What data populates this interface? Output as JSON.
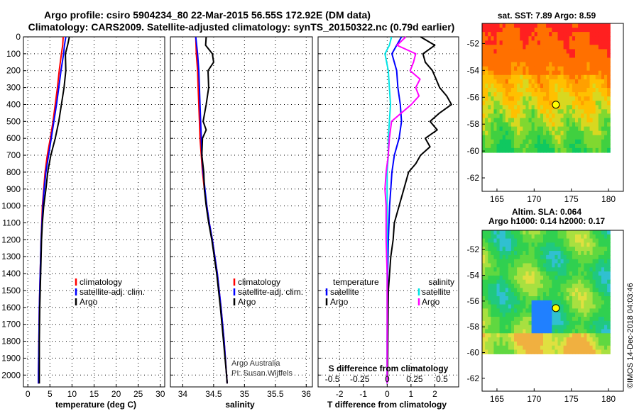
{
  "header": {
    "title_line1": "Argo profile: csiro 5904234_80 22-Mar-2015 56.55S 172.92E (DM data)",
    "title_line2": "Climatology: CARS2009. Satellite-adjusted climatology: synTS_20150322.nc (0.79d earlier)"
  },
  "colors": {
    "climatology": "#ff0000",
    "satellite": "#0000ff",
    "argo": "#000000",
    "sal_satellite": "#00e5e5",
    "sal_argo": "#ff00ff"
  },
  "chart_data": [
    {
      "type": "line",
      "id": "temperature",
      "xlabel": "temperature (deg C)",
      "ylabel": "",
      "xlim": [
        -1,
        31
      ],
      "ylim": [
        2070,
        0
      ],
      "xticks": [
        "0",
        "5",
        "10",
        "15",
        "20",
        "25",
        "30"
      ],
      "yticks": [
        "0",
        "100",
        "200",
        "300",
        "400",
        "500",
        "600",
        "700",
        "800",
        "900",
        "1000",
        "1100",
        "1200",
        "1300",
        "1400",
        "1500",
        "1600",
        "1700",
        "1800",
        "1900",
        "2000"
      ],
      "grid": true,
      "legend": [
        "climatology",
        "satellite-adj. clim.",
        "Argo"
      ],
      "series": [
        {
          "name": "climatology",
          "depth": [
            0,
            50,
            100,
            200,
            300,
            400,
            500,
            600,
            700,
            800,
            900,
            1000,
            1200,
            1400,
            1600,
            1800,
            2000,
            2050
          ],
          "values": [
            8.0,
            7.9,
            7.6,
            7.1,
            6.7,
            6.2,
            5.7,
            5.1,
            4.4,
            3.9,
            3.6,
            3.3,
            3.0,
            2.8,
            2.6,
            2.5,
            2.4,
            2.4
          ]
        },
        {
          "name": "satellite-adj. clim.",
          "depth": [
            0,
            50,
            100,
            200,
            300,
            400,
            500,
            600,
            700,
            800,
            900,
            1000,
            1200,
            1400,
            1600,
            1800,
            2000,
            2050
          ],
          "values": [
            8.6,
            8.3,
            8.1,
            7.5,
            7.0,
            6.5,
            5.9,
            5.3,
            4.7,
            4.1,
            3.7,
            3.4,
            3.0,
            2.8,
            2.6,
            2.5,
            2.4,
            2.4
          ]
        },
        {
          "name": "Argo",
          "depth": [
            0,
            50,
            100,
            200,
            300,
            400,
            500,
            600,
            700,
            800,
            900,
            1000,
            1100,
            1200,
            1400,
            1600,
            1800,
            2000,
            2050
          ],
          "values": [
            9.4,
            9.0,
            8.5,
            8.6,
            8.2,
            7.6,
            7.0,
            6.2,
            5.2,
            4.5,
            4.1,
            3.6,
            3.3,
            3.1,
            2.9,
            2.7,
            2.6,
            2.6,
            2.6
          ]
        }
      ]
    },
    {
      "type": "line",
      "id": "salinity",
      "xlabel": "salinity",
      "ylabel": "",
      "xlim": [
        33.8,
        36.1
      ],
      "ylim": [
        2070,
        0
      ],
      "xticks": [
        "34",
        "34.5",
        "35",
        "35.5",
        "36"
      ],
      "grid": true,
      "legend": [
        "climatology",
        "satellite-adj. clim.",
        "Argo"
      ],
      "annotation": [
        "Argo Australia",
        "PI: Susan Wijffels"
      ],
      "series": [
        {
          "name": "climatology",
          "depth": [
            0,
            100,
            200,
            300,
            400,
            500,
            600,
            700,
            800,
            900,
            1000,
            1100,
            1200,
            1400,
            1600,
            1800,
            2000,
            2050
          ],
          "values": [
            34.21,
            34.22,
            34.24,
            34.25,
            34.26,
            34.27,
            34.28,
            34.3,
            34.32,
            34.35,
            34.39,
            34.43,
            34.48,
            34.56,
            34.62,
            34.67,
            34.71,
            34.72
          ]
        },
        {
          "name": "satellite-adj. clim.",
          "depth": [
            0,
            100,
            200,
            300,
            400,
            500,
            600,
            700,
            800,
            900,
            1000,
            1100,
            1200,
            1400,
            1600,
            1800,
            2000,
            2050
          ],
          "values": [
            34.21,
            34.24,
            34.26,
            34.27,
            34.28,
            34.29,
            34.3,
            34.31,
            34.33,
            34.36,
            34.39,
            34.43,
            34.48,
            34.56,
            34.62,
            34.67,
            34.71,
            34.72
          ]
        },
        {
          "name": "Argo",
          "depth": [
            0,
            50,
            100,
            150,
            200,
            300,
            400,
            500,
            550,
            600,
            700,
            800,
            900,
            1000,
            1100,
            1200,
            1400,
            1600,
            1800,
            2000,
            2050
          ],
          "values": [
            34.38,
            34.37,
            34.48,
            34.5,
            34.41,
            34.42,
            34.38,
            34.33,
            34.38,
            34.32,
            34.31,
            34.34,
            34.35,
            34.38,
            34.42,
            34.47,
            34.55,
            34.61,
            34.66,
            34.71,
            34.72
          ]
        }
      ]
    },
    {
      "type": "line",
      "id": "difference",
      "xlabel": "T difference from climatology",
      "xlabel_top": "S difference from climatology",
      "xlim": [
        -2.9,
        3.0
      ],
      "ylim": [
        2070,
        0
      ],
      "xticks": [
        "-2",
        "-1",
        "0",
        "1",
        "2"
      ],
      "xticks_s": [
        "-0.5",
        "-0.25",
        "0",
        "0.25",
        "0.5"
      ],
      "grid": true,
      "legend_temperature": {
        "title": "temperature",
        "items": [
          "satellite",
          "Argo"
        ]
      },
      "legend_salinity": {
        "title": "salinity",
        "items": [
          "satellite",
          "Argo"
        ]
      },
      "series": [
        {
          "name": "temperature satellite",
          "depth": [
            0,
            50,
            100,
            200,
            300,
            400,
            500,
            600,
            700,
            800,
            900,
            1000,
            1200,
            1400,
            1600,
            1800,
            2000,
            2050
          ],
          "values": [
            0.6,
            0.4,
            0.2,
            0.4,
            0.45,
            0.55,
            0.6,
            0.5,
            0.3,
            0.2,
            0.15,
            0.1,
            0.05,
            0.02,
            0.01,
            0.0,
            0.0,
            0.0
          ]
        },
        {
          "name": "temperature Argo",
          "depth": [
            0,
            50,
            100,
            150,
            200,
            300,
            350,
            400,
            450,
            500,
            550,
            600,
            650,
            700,
            750,
            800,
            900,
            1000,
            1100,
            1200,
            1300,
            1400,
            1500,
            1600,
            1800,
            2000,
            2050
          ],
          "values": [
            1.4,
            2.0,
            1.5,
            1.6,
            1.9,
            2.2,
            2.5,
            2.7,
            2.2,
            1.8,
            2.1,
            1.6,
            1.8,
            1.4,
            1.2,
            0.9,
            0.7,
            0.5,
            0.3,
            0.25,
            0.15,
            0.1,
            0.05,
            0.04,
            0.03,
            0.02,
            0.0
          ]
        },
        {
          "name": "salinity satellite",
          "depth": [
            0,
            50,
            100,
            200,
            300,
            400,
            500,
            600,
            700,
            800,
            900,
            1000,
            1200,
            1400,
            1600,
            1800,
            2000,
            2050
          ],
          "values": [
            0.04,
            0.02,
            -0.02,
            0.01,
            0.02,
            0.03,
            0.02,
            0.01,
            0.01,
            0.0,
            0.0,
            0.0,
            0.0,
            0.0,
            0.0,
            0.0,
            0.0,
            0.0
          ]
        },
        {
          "name": "salinity Argo",
          "depth": [
            0,
            50,
            100,
            150,
            200,
            250,
            300,
            350,
            400,
            450,
            500,
            600,
            700,
            800,
            900,
            1000,
            1200,
            1400,
            1600,
            1800,
            2000,
            2050
          ],
          "values": [
            0.17,
            0.09,
            0.26,
            0.24,
            0.21,
            0.3,
            0.26,
            0.29,
            0.22,
            0.13,
            0.04,
            0.02,
            0.01,
            -0.01,
            -0.02,
            -0.01,
            -0.01,
            0.0,
            0.0,
            0.0,
            0.0,
            0.0
          ]
        }
      ]
    },
    {
      "type": "heatmap",
      "id": "sst_map",
      "title": "sat. SST: 7.89 Argo: 8.59",
      "xlim": [
        163,
        182
      ],
      "ylim": [
        -63,
        -50.5
      ],
      "xticks": [
        "165",
        "170",
        "175",
        "180"
      ],
      "yticks": [
        "-52",
        "-54",
        "-56",
        "-58",
        "-60",
        "-62"
      ],
      "argo_position": {
        "lon": 172.92,
        "lat": -56.55
      }
    },
    {
      "type": "heatmap",
      "id": "sla_map",
      "title": "Altim. SLA: 0.064",
      "subtitle": "Argo h1000: 0.14 h2000: 0.17",
      "xlim": [
        163,
        182
      ],
      "ylim": [
        -63,
        -50.5
      ],
      "xticks": [
        "165",
        "170",
        "175",
        "180"
      ],
      "yticks": [
        "-52",
        "-54",
        "-56",
        "-58",
        "-60",
        "-62"
      ],
      "argo_position": {
        "lon": 172.92,
        "lat": -56.55
      }
    }
  ],
  "footer": {
    "credit": "©IMOS 14-Dec-2018 04:03:46"
  }
}
